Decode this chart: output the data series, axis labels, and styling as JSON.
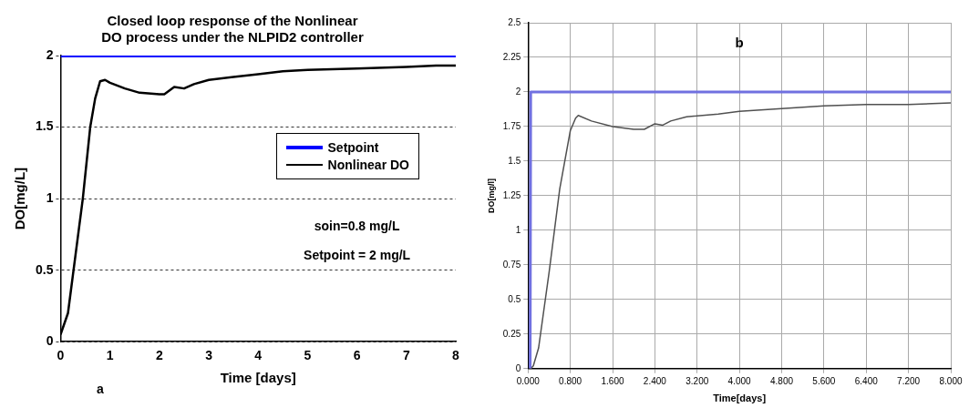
{
  "chart_data": [
    {
      "type": "line",
      "title": "Closed loop response of the Nonlinear\nDO process under the NLPID2 controller",
      "xlabel": "Time [days]",
      "ylabel": "DO[mg/L]",
      "xlim": [
        0,
        8
      ],
      "xticks": [
        0,
        1,
        2,
        3,
        4,
        5,
        6,
        7,
        8
      ],
      "ylim": [
        0,
        2
      ],
      "yticks": [
        0,
        0.5,
        1,
        1.5,
        2
      ],
      "grid": "y",
      "legend": "right",
      "annotations": [
        "soin=0.8 mg/L",
        "Setpoint = 2 mg/L",
        "a"
      ],
      "series": [
        {
          "name": "Setpoint",
          "color": "#0000ff",
          "x": [
            0,
            8
          ],
          "values": [
            2,
            2
          ]
        },
        {
          "name": "Nonlinear DO",
          "color": "#000000",
          "x": [
            0,
            0.15,
            0.3,
            0.45,
            0.6,
            0.7,
            0.8,
            0.9,
            1.0,
            1.3,
            1.6,
            2.0,
            2.1,
            2.3,
            2.5,
            2.7,
            3,
            3.5,
            4,
            4.5,
            5,
            6,
            7,
            7.6,
            8
          ],
          "values": [
            0.05,
            0.2,
            0.6,
            1.0,
            1.5,
            1.7,
            1.82,
            1.83,
            1.81,
            1.77,
            1.74,
            1.73,
            1.73,
            1.78,
            1.77,
            1.8,
            1.83,
            1.85,
            1.87,
            1.89,
            1.9,
            1.91,
            1.92,
            1.93,
            1.93
          ]
        }
      ]
    },
    {
      "type": "line",
      "xlabel": "Time[days]",
      "ylabel": "DO[mg/l]",
      "xlim": [
        0,
        8
      ],
      "xticks": [
        {
          "value": 0,
          "label": "0.000"
        },
        {
          "value": 0.8,
          "label": "0.800"
        },
        {
          "value": 1.6,
          "label": "1.600"
        },
        {
          "value": 2.4,
          "label": "2.400"
        },
        {
          "value": 3.2,
          "label": "3.200"
        },
        {
          "value": 4,
          "label": "4.000"
        },
        {
          "value": 4.8,
          "label": "4.800"
        },
        {
          "value": 5.6,
          "label": "5.600"
        },
        {
          "value": 6.4,
          "label": "6.400"
        },
        {
          "value": 7.2,
          "label": "7.200"
        },
        {
          "value": 8,
          "label": "8.000"
        }
      ],
      "ylim": [
        0,
        2.5
      ],
      "yticks": [
        0,
        0.25,
        0.5,
        0.75,
        1,
        1.25,
        1.5,
        1.75,
        2,
        2.25,
        2.5
      ],
      "grid": true,
      "annotations": [
        "b"
      ],
      "series": [
        {
          "color": "#7070e0",
          "x": [
            0.04,
            0.05,
            8
          ],
          "values": [
            0,
            2,
            2
          ]
        },
        {
          "color": "#505050",
          "x": [
            0.05,
            0.1,
            0.2,
            0.4,
            0.6,
            0.8,
            0.9,
            0.95,
            1.2,
            1.6,
            2.0,
            2.2,
            2.4,
            2.55,
            2.7,
            3.0,
            3.6,
            4.0,
            4.8,
            5.6,
            6.4,
            7.2,
            8
          ],
          "values": [
            0,
            0.02,
            0.15,
            0.7,
            1.3,
            1.72,
            1.81,
            1.83,
            1.79,
            1.75,
            1.73,
            1.73,
            1.77,
            1.76,
            1.79,
            1.82,
            1.84,
            1.86,
            1.88,
            1.9,
            1.91,
            1.91,
            1.92
          ]
        }
      ]
    }
  ]
}
